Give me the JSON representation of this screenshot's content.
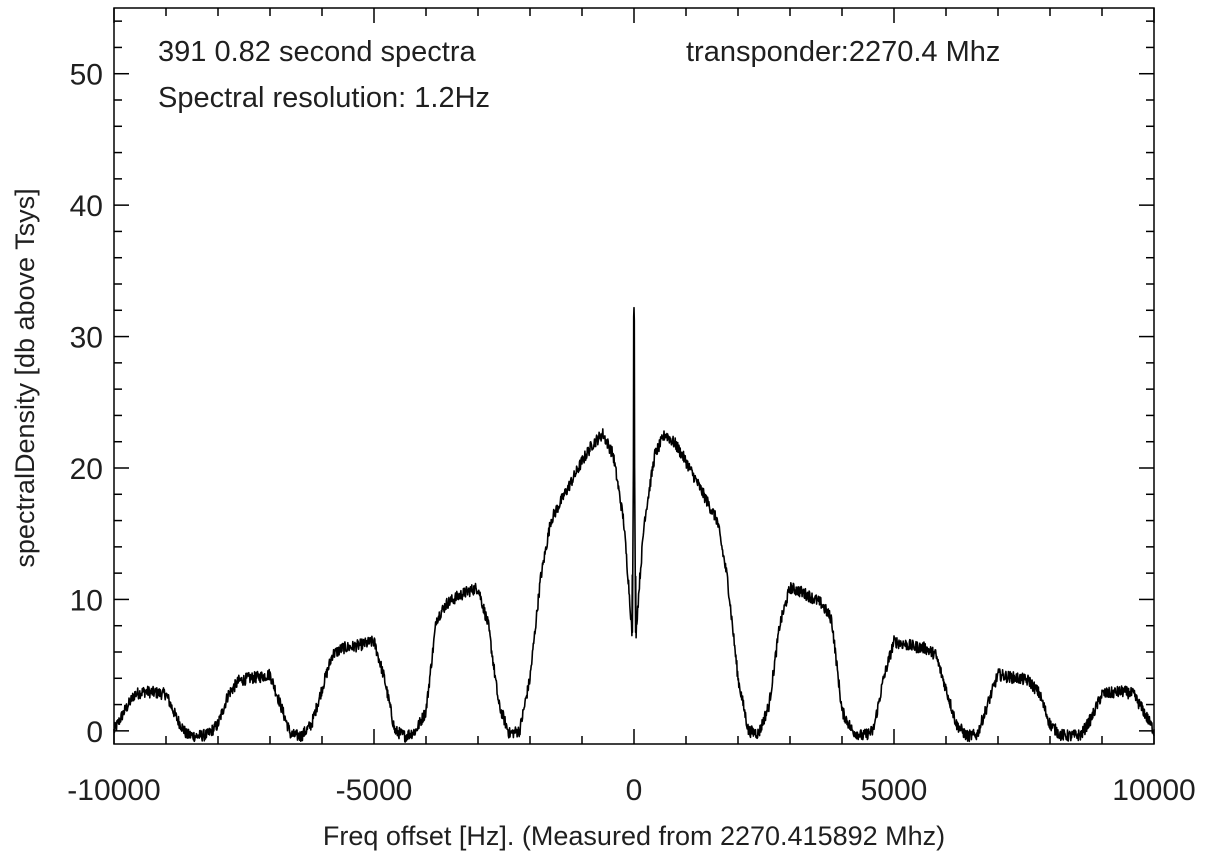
{
  "chart_data": {
    "type": "line",
    "title": "",
    "xlabel": "Freq offset [Hz]. (Measured from 2270.415892 Mhz)",
    "ylabel": "spectralDensity [db above Tsys]",
    "xlim": [
      -10000,
      10000
    ],
    "ylim": [
      -1,
      55
    ],
    "xticks": [
      "-10000",
      "-5000",
      "0",
      "5000",
      "10000"
    ],
    "yticks": [
      "0",
      "10",
      "20",
      "30",
      "40",
      "50"
    ],
    "annotations": {
      "spectra": "391 0.82 second spectra",
      "resolution": "Spectral resolution: 1.2Hz",
      "transponder": "transponder:2270.4 Mhz"
    },
    "grid": false,
    "line_color": "#000000",
    "series": [
      {
        "x": [
          -10000,
          -9800,
          -9600,
          -9400,
          -9200,
          -9000,
          -8800,
          -8600,
          -8400,
          -8200,
          -8000,
          -7800,
          -7600,
          -7400,
          -7200,
          -7000,
          -6800,
          -6600,
          -6400,
          -6200,
          -6000,
          -5800,
          -5600,
          -5400,
          -5200,
          -5000,
          -4800,
          -4600,
          -4400,
          -4200,
          -4000,
          -3800,
          -3600,
          -3400,
          -3200,
          -3000,
          -2800,
          -2600,
          -2400,
          -2200,
          -2000,
          -1800,
          -1600,
          -1400,
          -1200,
          -1000,
          -800,
          -600,
          -400,
          -200,
          -100,
          -40,
          -15,
          0,
          15,
          40,
          100,
          200,
          400,
          600,
          800,
          1000,
          1200,
          1400,
          1600,
          1800,
          2000,
          2200,
          2400,
          2600,
          2800,
          3000,
          3200,
          3400,
          3600,
          3800,
          4000,
          4200,
          4400,
          4600,
          4800,
          5000,
          5200,
          5400,
          5600,
          5800,
          6000,
          6200,
          6400,
          6600,
          6800,
          7000,
          7200,
          7400,
          7600,
          7800,
          8000,
          8200,
          8400,
          8600,
          8800,
          9000,
          9200,
          9400,
          9600,
          9800,
          10000
        ],
        "y": [
          0,
          1.5,
          2.8,
          3.0,
          2.9,
          2.8,
          1.0,
          -0.3,
          -0.4,
          -0.3,
          0.5,
          2.8,
          3.8,
          4.0,
          4.1,
          4.3,
          2.0,
          -0.3,
          -0.4,
          0.5,
          3.2,
          5.8,
          6.3,
          6.4,
          6.6,
          6.8,
          4.0,
          0.0,
          -0.4,
          0.0,
          1.5,
          8.5,
          9.7,
          10.2,
          10.6,
          10.9,
          8.0,
          2.0,
          -0.2,
          0.0,
          4.0,
          11.5,
          16.0,
          17.5,
          19.0,
          20.5,
          21.8,
          22.6,
          21.0,
          16.0,
          11.0,
          7.5,
          20.0,
          32.0,
          20.0,
          7.5,
          11.0,
          16.0,
          21.0,
          22.6,
          21.8,
          20.5,
          19.0,
          17.5,
          16.0,
          11.5,
          4.0,
          0.0,
          -0.2,
          2.0,
          8.0,
          10.9,
          10.6,
          10.2,
          9.7,
          8.5,
          1.5,
          0.0,
          -0.4,
          0.0,
          4.0,
          6.8,
          6.6,
          6.4,
          6.3,
          5.8,
          3.2,
          0.5,
          -0.4,
          -0.3,
          2.0,
          4.3,
          4.1,
          4.0,
          3.8,
          2.8,
          0.5,
          -0.3,
          -0.4,
          -0.3,
          1.0,
          2.8,
          2.9,
          3.0,
          2.8,
          1.5,
          0
        ]
      }
    ]
  }
}
